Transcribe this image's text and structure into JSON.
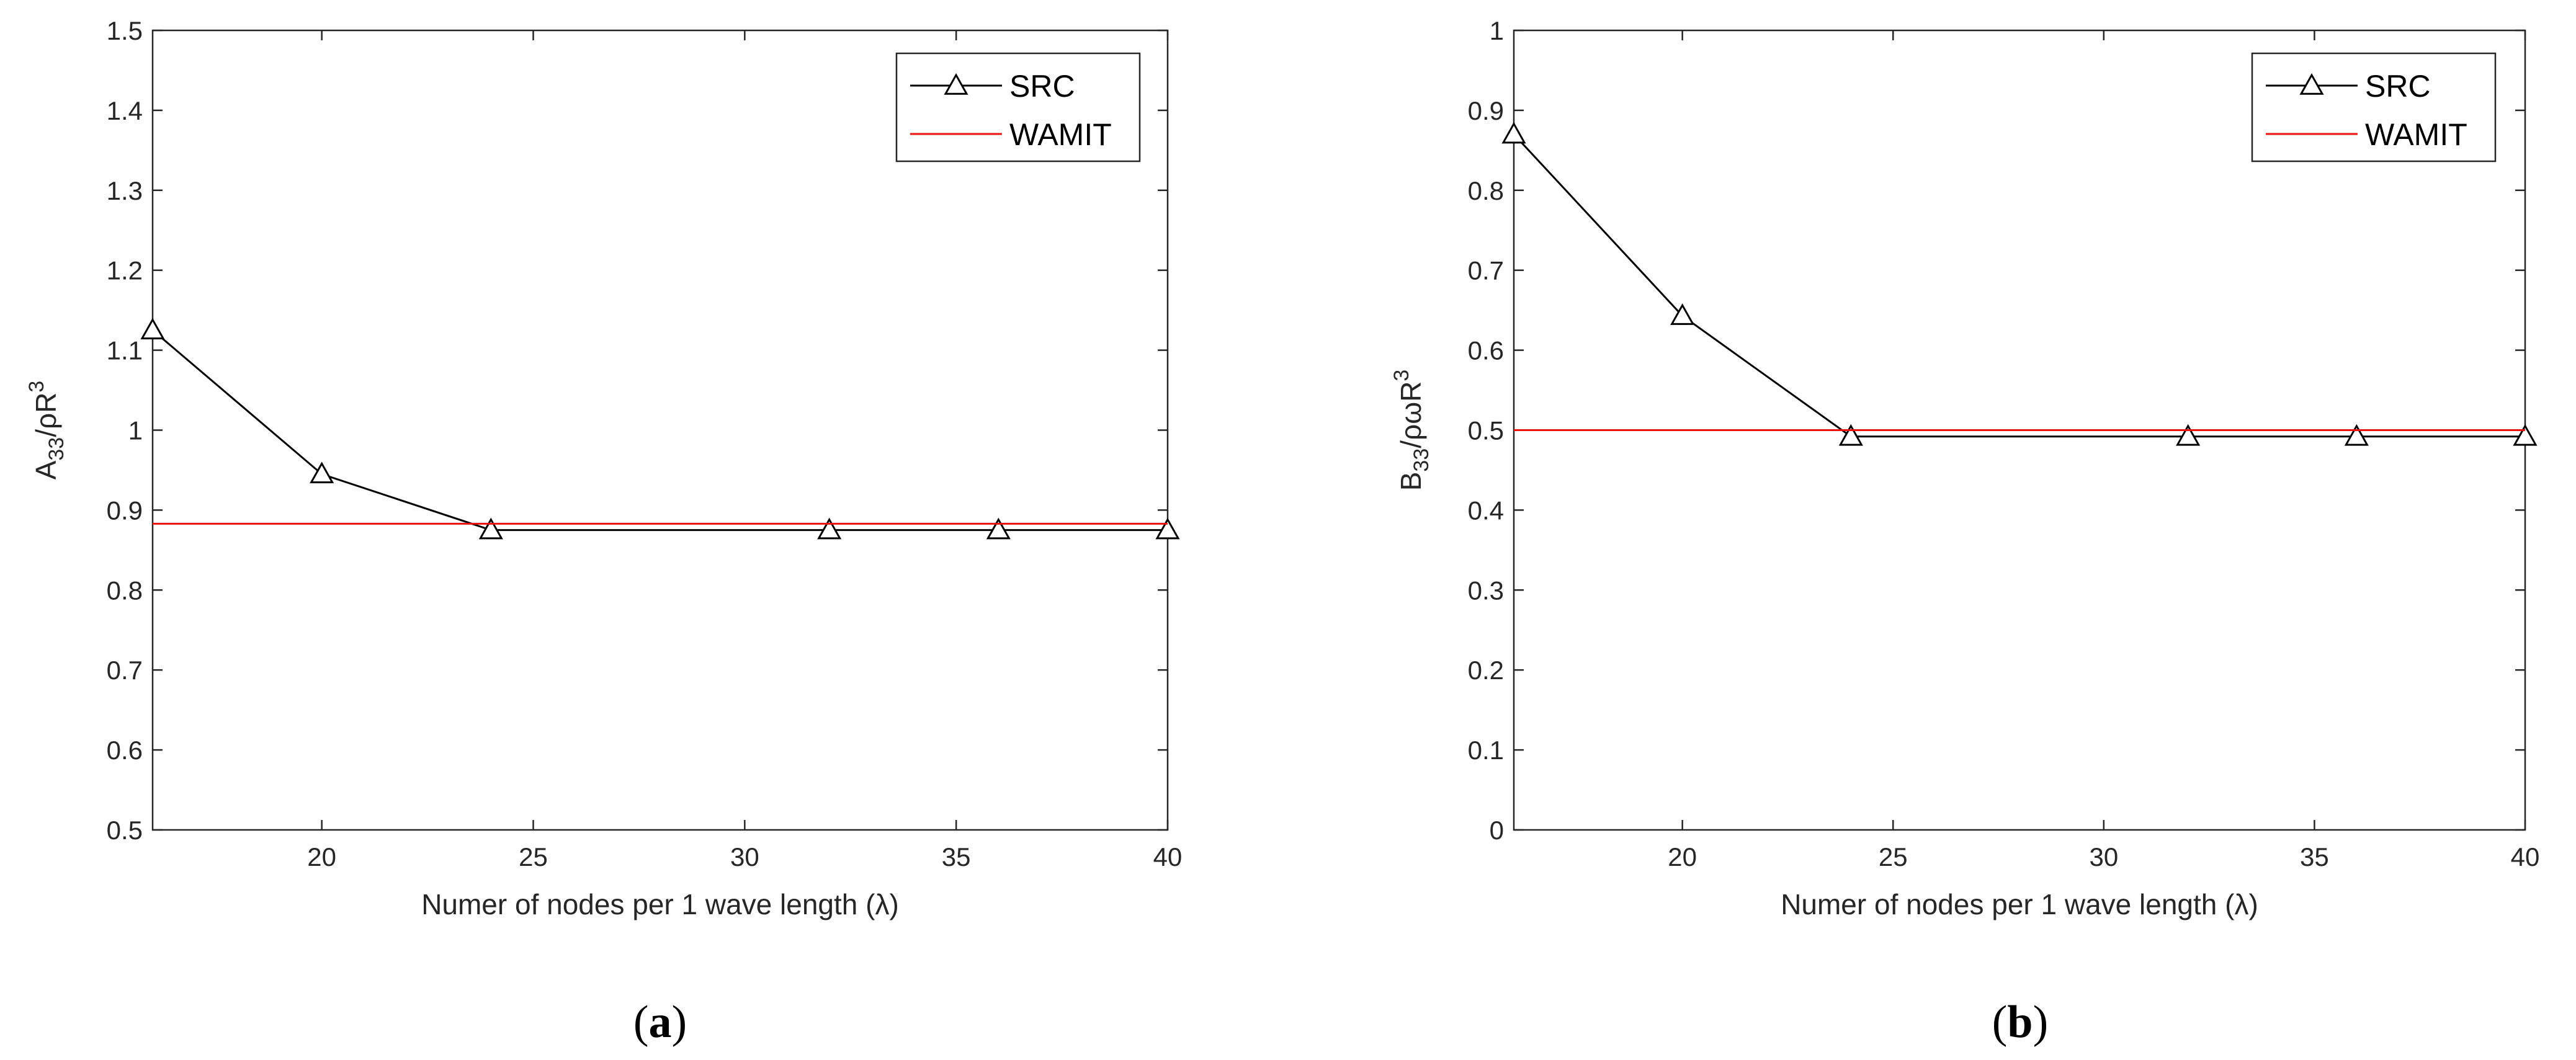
{
  "chart_data": [
    {
      "type": "line",
      "panel_label": "a",
      "xlabel": "Numer of nodes per 1 wave length (λ)",
      "ylabel": "A33/ρR3",
      "ylabel_parts": {
        "base": "A",
        "sub": "33",
        "mid": "/ρR",
        "sup": "3"
      },
      "xlim": [
        16,
        40
      ],
      "ylim": [
        0.5,
        1.5
      ],
      "xticks": [
        20,
        25,
        30,
        35,
        40
      ],
      "yticks": [
        0.5,
        0.6,
        0.7,
        0.8,
        0.9,
        1,
        1.1,
        1.2,
        1.3,
        1.4,
        1.5
      ],
      "xtick_labels": [
        "20",
        "25",
        "30",
        "35",
        "40"
      ],
      "ytick_labels": [
        "0.5",
        "0.6",
        "0.7",
        "0.8",
        "0.9",
        "1",
        "1.1",
        "1.2",
        "1.3",
        "1.4",
        "1.5"
      ],
      "legend_position": "top-right",
      "series": [
        {
          "name": "SRC",
          "color": "#000000",
          "marker": "triangle",
          "x": [
            16,
            20,
            24,
            32,
            36,
            40
          ],
          "y": [
            1.125,
            0.945,
            0.875,
            0.875,
            0.875,
            0.875
          ]
        },
        {
          "name": "WAMIT",
          "color": "#e8120c",
          "marker": "none",
          "x": [
            16,
            40
          ],
          "y": [
            0.883,
            0.883
          ]
        }
      ]
    },
    {
      "type": "line",
      "panel_label": "b",
      "xlabel": "Numer of nodes per 1 wave length (λ)",
      "ylabel": "B33/ρωR3",
      "ylabel_parts": {
        "base": "B",
        "sub": "33",
        "mid": "/ρωR",
        "sup": "3"
      },
      "xlim": [
        16,
        40
      ],
      "ylim": [
        0,
        1
      ],
      "xticks": [
        20,
        25,
        30,
        35,
        40
      ],
      "yticks": [
        0,
        0.1,
        0.2,
        0.3,
        0.4,
        0.5,
        0.6,
        0.7,
        0.8,
        0.9,
        1
      ],
      "xtick_labels": [
        "20",
        "25",
        "30",
        "35",
        "40"
      ],
      "ytick_labels": [
        "0",
        "0.1",
        "0.2",
        "0.3",
        "0.4",
        "0.5",
        "0.6",
        "0.7",
        "0.8",
        "0.9",
        "1"
      ],
      "legend_position": "top-right",
      "series": [
        {
          "name": "SRC",
          "color": "#000000",
          "marker": "triangle",
          "x": [
            16,
            20,
            24,
            32,
            36,
            40
          ],
          "y": [
            0.87,
            0.643,
            0.492,
            0.492,
            0.492,
            0.492
          ]
        },
        {
          "name": "WAMIT",
          "color": "#e8120c",
          "marker": "none",
          "x": [
            16,
            40
          ],
          "y": [
            0.5,
            0.5
          ]
        }
      ]
    }
  ]
}
